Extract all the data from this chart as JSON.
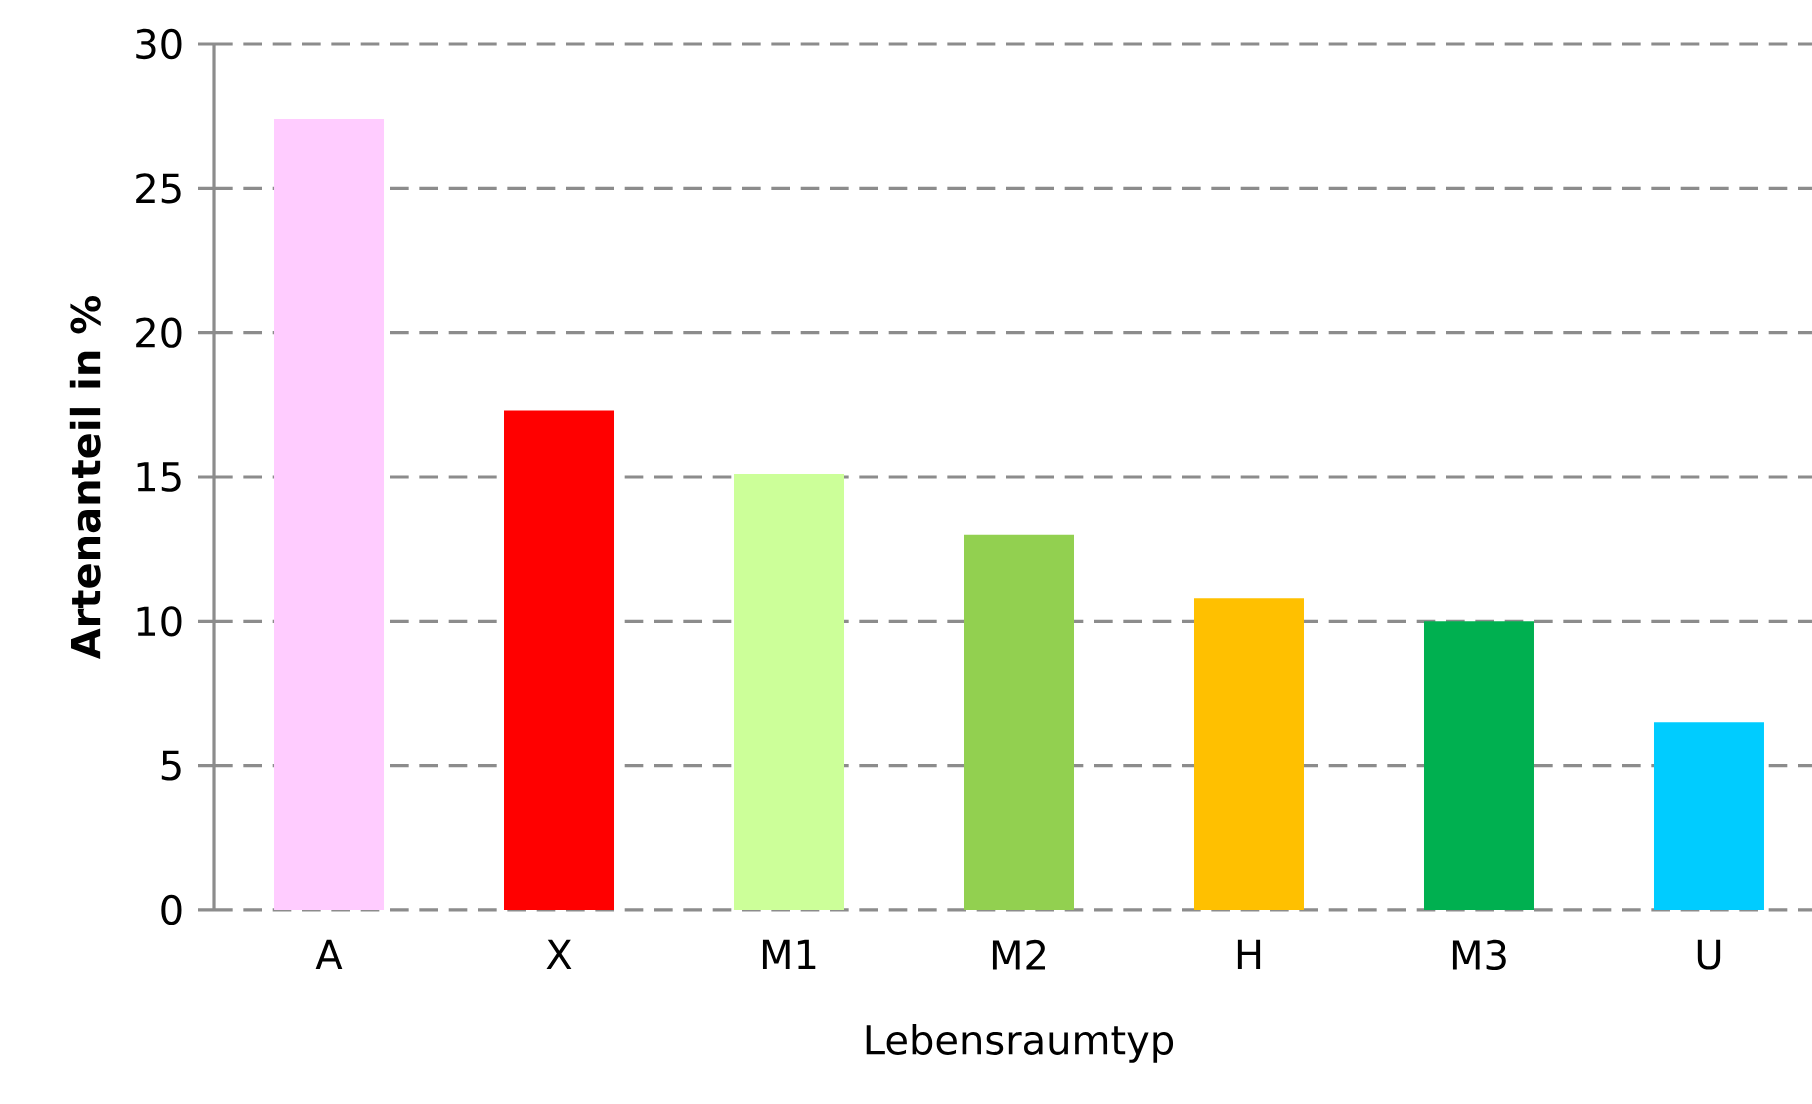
{
  "chart_data": {
    "type": "bar",
    "xlabel": "Lebensraumtyp",
    "ylabel": "Artenanteil in %",
    "categories": [
      "A",
      "X",
      "M1",
      "M2",
      "H",
      "M3",
      "U"
    ],
    "values": [
      27.4,
      17.3,
      15.1,
      13.0,
      10.8,
      10.0,
      6.5
    ],
    "colors": [
      "#ffccff",
      "#ff0000",
      "#ccff99",
      "#92d050",
      "#ffc000",
      "#00b050",
      "#00ccff"
    ],
    "ylim": [
      0,
      30
    ],
    "yticks": [
      0,
      5,
      10,
      15,
      20,
      25,
      30
    ],
    "grid": "y"
  }
}
